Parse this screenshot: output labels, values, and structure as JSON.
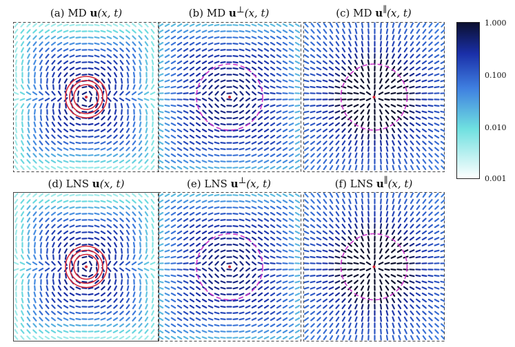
{
  "panels": [
    {
      "letter": "(a)",
      "method": "MD",
      "bold": "u",
      "sup": "",
      "args": "(x, t)",
      "kind": "full",
      "row": 0,
      "col": 0,
      "ring": "red"
    },
    {
      "letter": "(b)",
      "method": "MD",
      "bold": "u",
      "sup": "⊥",
      "args": "(x, t)",
      "kind": "perp",
      "row": 0,
      "col": 1,
      "ring": "magenta"
    },
    {
      "letter": "(c)",
      "method": "MD",
      "bold": "u",
      "sup": "∥",
      "args": "(x, t)",
      "kind": "par",
      "row": 0,
      "col": 2,
      "ring": "magenta"
    },
    {
      "letter": "(d)",
      "method": "LNS",
      "bold": "u",
      "sup": "",
      "args": "(x, t)",
      "kind": "full",
      "row": 1,
      "col": 0,
      "ring": "red"
    },
    {
      "letter": "(e)",
      "method": "LNS",
      "bold": "u",
      "sup": "⊥",
      "args": "(x, t)",
      "kind": "perp",
      "row": 1,
      "col": 1,
      "ring": "magenta"
    },
    {
      "letter": "(f)",
      "method": "LNS",
      "bold": "u",
      "sup": "∥",
      "args": "(x, t)",
      "kind": "par",
      "row": 1,
      "col": 2,
      "ring": "magenta"
    }
  ],
  "colorbar": {
    "scale": "log",
    "ticks": [
      "1.000",
      "0.100",
      "0.010",
      "0.001"
    ],
    "colors": [
      "#0b0f2e",
      "#1a2fa8",
      "#3f7fe0",
      "#6fe0e0",
      "#ffffff"
    ]
  }
}
